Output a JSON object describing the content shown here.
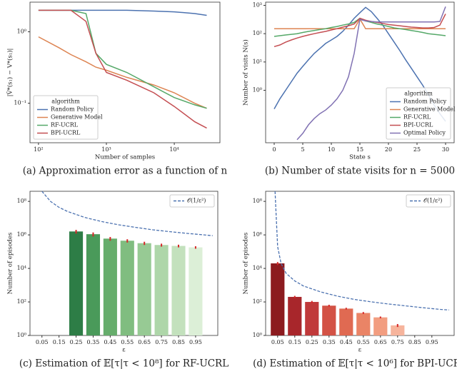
{
  "chart_data": [
    {
      "type": "line",
      "caption": "(a) Approximation error as a function of n",
      "xlabel": "Number of samples",
      "ylabel": "|V̂*(s₁) − V*(s₁)|",
      "xscale": "log",
      "yscale": "log",
      "xlim": [
        75,
        47000
      ],
      "ylim": [
        0.028,
        2.6
      ],
      "xticks": [
        {
          "value": 100,
          "label": "10²"
        },
        {
          "value": 1000,
          "label": "10³"
        },
        {
          "value": 10000,
          "label": "10⁴"
        }
      ],
      "yticks": [
        {
          "value": 0.1,
          "label": "10⁻¹"
        },
        {
          "value": 1,
          "label": "10⁰"
        }
      ],
      "legend": "lower left",
      "legend_title": "algorithm",
      "x": [
        100,
        200,
        300,
        500,
        700,
        1000,
        2000,
        5000,
        10000,
        20000,
        30000
      ],
      "series": [
        {
          "name": "Random Policy",
          "color": "#4c72b0",
          "values": [
            2.0,
            2.0,
            2.0,
            2.0,
            2.0,
            2.0,
            2.0,
            1.95,
            1.9,
            1.8,
            1.7
          ]
        },
        {
          "name": "Generative Model",
          "color": "#dd8452",
          "values": [
            0.85,
            0.6,
            0.48,
            0.38,
            0.32,
            0.29,
            0.23,
            0.18,
            0.14,
            0.1,
            0.085
          ]
        },
        {
          "name": "RF-UCRL",
          "color": "#55a868",
          "values": [
            2.0,
            2.0,
            2.0,
            1.8,
            0.5,
            0.35,
            0.27,
            0.17,
            0.12,
            0.095,
            0.085
          ]
        },
        {
          "name": "BPI-UCRL",
          "color": "#c44e52",
          "values": [
            2.0,
            2.0,
            2.0,
            1.4,
            0.5,
            0.27,
            0.21,
            0.14,
            0.09,
            0.055,
            0.045
          ]
        }
      ]
    },
    {
      "type": "line",
      "caption": "(b) Number of state visits for n = 5000",
      "xlabel": "State s",
      "ylabel": "Number of visits N(s)",
      "xscale": "linear",
      "yscale": "log",
      "xlim": [
        -1.5,
        31.5
      ],
      "ylim": [
        0.014,
        1300
      ],
      "xticks": [
        0,
        5,
        10,
        15,
        20,
        25,
        30
      ],
      "yticks": [
        {
          "value": 1,
          "label": "10⁰"
        },
        {
          "value": 10,
          "label": "10¹"
        },
        {
          "value": 100,
          "label": "10²"
        },
        {
          "value": 1000,
          "label": "10³"
        }
      ],
      "legend": "lower right",
      "legend_title": "algorithm",
      "x": [
        0,
        1,
        2,
        3,
        4,
        5,
        6,
        7,
        8,
        9,
        10,
        11,
        12,
        13,
        14,
        15,
        16,
        17,
        18,
        19,
        20,
        21,
        22,
        23,
        24,
        25,
        26,
        27,
        28,
        29,
        30
      ],
      "series": [
        {
          "name": "Random Policy",
          "color": "#4c72b0",
          "values": [
            0.22,
            0.5,
            1,
            2,
            4,
            7,
            12,
            20,
            30,
            45,
            60,
            80,
            120,
            200,
            350,
            550,
            850,
            600,
            350,
            200,
            100,
            50,
            25,
            12,
            6,
            3,
            1.5,
            0.7,
            0.3,
            0.15,
            0.08
          ]
        },
        {
          "name": "Generative Model",
          "color": "#dd8452",
          "values": [
            150,
            150,
            150,
            150,
            150,
            150,
            150,
            150,
            150,
            150,
            150,
            150,
            150,
            150,
            150,
            330,
            150,
            150,
            150,
            150,
            150,
            150,
            150,
            150,
            150,
            150,
            150,
            150,
            150,
            150,
            150
          ]
        },
        {
          "name": "RF-UCRL",
          "color": "#55a868",
          "values": [
            80,
            85,
            90,
            95,
            100,
            110,
            120,
            130,
            140,
            150,
            165,
            180,
            200,
            220,
            250,
            350,
            280,
            250,
            220,
            200,
            180,
            160,
            150,
            140,
            130,
            120,
            110,
            100,
            95,
            90,
            85
          ]
        },
        {
          "name": "BPI-UCRL",
          "color": "#c44e52",
          "values": [
            35,
            40,
            50,
            60,
            70,
            80,
            90,
            100,
            110,
            120,
            135,
            150,
            170,
            190,
            220,
            350,
            300,
            270,
            250,
            230,
            210,
            200,
            190,
            180,
            170,
            165,
            160,
            160,
            165,
            200,
            500
          ]
        },
        {
          "name": "Optimal Policy",
          "color": "#8172b3",
          "values": [
            null,
            null,
            null,
            null,
            0.018,
            0.03,
            0.06,
            0.1,
            0.15,
            0.2,
            0.3,
            0.5,
            1,
            3,
            20,
            320,
            280,
            270,
            260,
            260,
            260,
            260,
            260,
            260,
            260,
            260,
            260,
            260,
            260,
            270,
            900
          ]
        }
      ]
    },
    {
      "type": "bar",
      "caption": "(c) Estimation of 𝔼[τ|τ < 10⁸] for RF-UCRL",
      "xlabel": "ε",
      "ylabel": "Number of episodes",
      "xscale": "linear",
      "yscale": "log",
      "xlim": [
        -0.02,
        1.08
      ],
      "ylim": [
        1,
        400000000
      ],
      "yticks": [
        {
          "value": 1,
          "label": "10⁰"
        },
        {
          "value": 100,
          "label": "10²"
        },
        {
          "value": 10000,
          "label": "10⁴"
        },
        {
          "value": 1000000,
          "label": "10⁶"
        },
        {
          "value": 100000000,
          "label": "10⁸"
        }
      ],
      "legend": "upper right",
      "x": [
        0.05,
        0.15,
        0.25,
        0.35,
        0.45,
        0.55,
        0.65,
        0.75,
        0.85,
        0.95
      ],
      "values": [
        null,
        null,
        1600000,
        1100000,
        600000,
        450000,
        320000,
        250000,
        220000,
        180000
      ],
      "errors": [
        null,
        null,
        400000,
        300000,
        150000,
        100000,
        70000,
        50000,
        40000,
        30000
      ],
      "colors": [
        null,
        null,
        "#2d7d46",
        "#4a9a5a",
        "#66ad6c",
        "#80bd80",
        "#97ca94",
        "#aed6a9",
        "#c3e1bd",
        "#dcefd7"
      ],
      "error_color": "#d62728",
      "line": {
        "name": "𝒪(1/ε²)",
        "color": "#4c72b0",
        "style": "dashed",
        "x": [
          0.05,
          0.1,
          0.15,
          0.2,
          0.3,
          0.4,
          0.5,
          0.6,
          0.7,
          0.8,
          0.9,
          1.0,
          1.05
        ],
        "values": [
          400000000,
          100000000,
          44000000,
          25000000,
          11000000,
          6250000,
          4000000,
          2800000,
          2000000,
          1560000,
          1230000,
          1000000,
          900000
        ]
      }
    },
    {
      "type": "bar",
      "caption": "(d) Estimation of 𝔼[τ|τ < 10⁶] for BPI-UCRL",
      "xlabel": "ε",
      "ylabel": "Number of episodes",
      "xscale": "linear",
      "yscale": "log",
      "xlim": [
        -0.02,
        1.08
      ],
      "ylim": [
        1,
        400000000
      ],
      "yticks": [
        {
          "value": 1,
          "label": "10⁰"
        },
        {
          "value": 100,
          "label": "10²"
        },
        {
          "value": 10000,
          "label": "10⁴"
        },
        {
          "value": 1000000,
          "label": "10⁶"
        },
        {
          "value": 100000000,
          "label": "10⁸"
        }
      ],
      "legend": "upper right",
      "x": [
        0.05,
        0.15,
        0.25,
        0.35,
        0.45,
        0.55,
        0.65,
        0.75,
        0.85,
        0.95
      ],
      "values": [
        20000,
        200,
        100,
        60,
        40,
        22,
        12,
        4,
        null,
        null
      ],
      "errors": [
        4000,
        30,
        15,
        8,
        5,
        3,
        1.5,
        0.8,
        null,
        null
      ],
      "colors": [
        "#8c1b1f",
        "#a8262b",
        "#c0393a",
        "#d35245",
        "#e06a52",
        "#ea8466",
        "#f29d80",
        "#f6b49c",
        null,
        null
      ],
      "error_color": "#d62728",
      "line": {
        "name": "𝒪(1/ε²)",
        "color": "#4c72b0",
        "style": "dashed",
        "x": [
          0.035,
          0.04,
          0.05,
          0.07,
          0.1,
          0.15,
          0.2,
          0.3,
          0.4,
          0.5,
          0.6,
          0.7,
          0.8,
          0.9,
          1.0,
          1.05
        ],
        "values": [
          400000000,
          30000000,
          200000,
          20000,
          5000,
          1800,
          900,
          400,
          220,
          140,
          100,
          75,
          58,
          45,
          36,
          33
        ]
      }
    }
  ]
}
